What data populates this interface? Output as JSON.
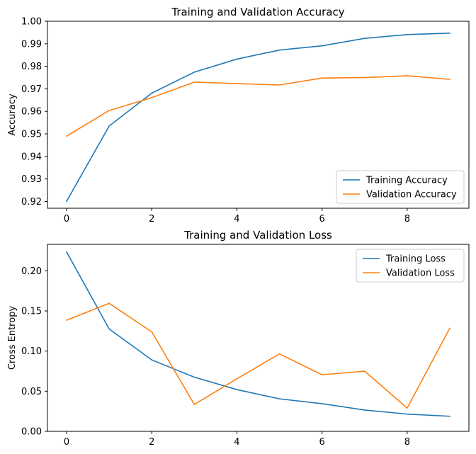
{
  "chart_data": [
    {
      "type": "line",
      "title": "Training and Validation Accuracy",
      "xlabel": "",
      "ylabel": "Accuracy",
      "x": [
        0,
        1,
        2,
        3,
        4,
        5,
        6,
        7,
        8,
        9
      ],
      "xlim": [
        -0.45,
        9.45
      ],
      "ylim": [
        0.917,
        1.0
      ],
      "xticks": [
        0,
        2,
        4,
        6,
        8
      ],
      "yticks": [
        0.92,
        0.93,
        0.94,
        0.95,
        0.96,
        0.97,
        0.98,
        0.99,
        1.0
      ],
      "ytick_labels": [
        "0.92",
        "0.93",
        "0.94",
        "0.95",
        "0.96",
        "0.97",
        "0.98",
        "0.99",
        "1.00"
      ],
      "legend_loc": "lower-right",
      "grid": false,
      "series": [
        {
          "name": "Training Accuracy",
          "color": "#1f77b4",
          "values": [
            0.9201,
            0.9535,
            0.9681,
            0.9774,
            0.9832,
            0.9872,
            0.9891,
            0.9924,
            0.9941,
            0.9947
          ]
        },
        {
          "name": "Validation Accuracy",
          "color": "#ff7f0e",
          "values": [
            0.949,
            0.9604,
            0.9661,
            0.973,
            0.9723,
            0.9717,
            0.9748,
            0.975,
            0.9758,
            0.9742
          ]
        }
      ]
    },
    {
      "type": "line",
      "title": "Training and Validation Loss",
      "xlabel": "",
      "ylabel": "Cross Entropy",
      "x": [
        0,
        1,
        2,
        3,
        4,
        5,
        6,
        7,
        8,
        9
      ],
      "xlim": [
        -0.45,
        9.45
      ],
      "ylim": [
        0.0,
        0.233
      ],
      "xticks": [
        0,
        2,
        4,
        6,
        8
      ],
      "yticks": [
        0.0,
        0.05,
        0.1,
        0.15,
        0.2
      ],
      "ytick_labels": [
        "0.00",
        "0.05",
        "0.10",
        "0.15",
        "0.20"
      ],
      "legend_loc": "upper-right",
      "grid": false,
      "series": [
        {
          "name": "Training Loss",
          "color": "#1f77b4",
          "values": [
            0.2235,
            0.1275,
            0.089,
            0.0675,
            0.052,
            0.0405,
            0.0345,
            0.0265,
            0.0215,
            0.0188
          ]
        },
        {
          "name": "Validation Loss",
          "color": "#ff7f0e",
          "values": [
            0.1385,
            0.1595,
            0.124,
            0.0335,
            0.0655,
            0.0965,
            0.0705,
            0.075,
            0.029,
            0.1285
          ]
        }
      ]
    }
  ]
}
